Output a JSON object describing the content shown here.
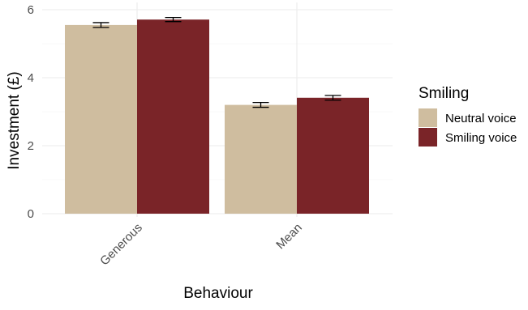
{
  "chart_data": {
    "type": "bar",
    "title": "",
    "xlabel": "Behaviour",
    "ylabel": "Investment (£)",
    "categories": [
      "Generous",
      "Mean"
    ],
    "series": [
      {
        "name": "Neutral voice",
        "color": "#cfbd9f",
        "values": [
          5.55,
          3.2
        ],
        "error": [
          0.07,
          0.07
        ]
      },
      {
        "name": "Smiling voice",
        "color": "#7a2428",
        "values": [
          5.71,
          3.41
        ],
        "error": [
          0.06,
          0.07
        ]
      }
    ],
    "ylim": [
      0,
      6
    ],
    "yticks": [
      0,
      2,
      4,
      6
    ],
    "grid": true,
    "legend": {
      "title": "Smiling",
      "position": "right"
    }
  }
}
